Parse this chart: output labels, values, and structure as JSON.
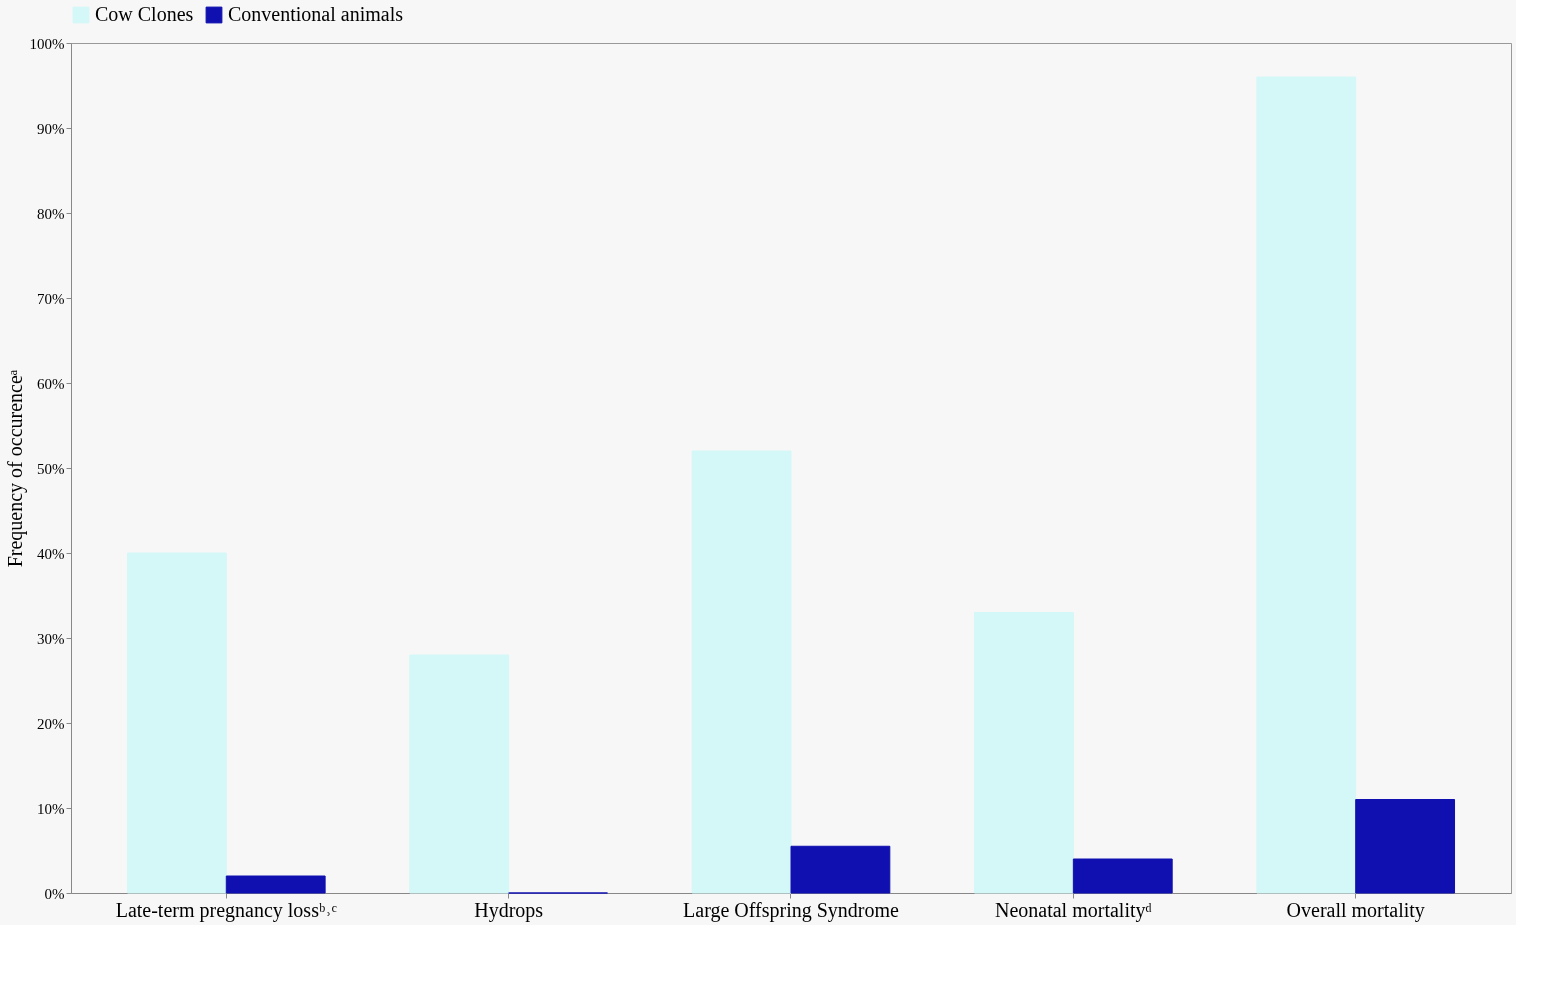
{
  "chart_data": {
    "type": "bar",
    "ylabel": "Frequency of occurenceᵃ",
    "categories": [
      "Late-term pregnancy lossᵇ˒ᶜ",
      "Hydrops",
      "Large Offspring Syndrome",
      "Neonatal mortalityᵈ",
      "Overall mortality"
    ],
    "series": [
      {
        "name": "Cow Clones",
        "color": "#d4f7f7",
        "values": [
          40,
          28,
          52,
          33,
          96
        ]
      },
      {
        "name": "Conventional animals",
        "color": "#1010b0",
        "values": [
          2,
          0,
          5.5,
          4,
          11
        ]
      }
    ],
    "ylim": [
      0,
      100
    ],
    "yticks": [
      {
        "value": 0,
        "label": "0%"
      },
      {
        "value": 10,
        "label": "10%"
      },
      {
        "value": 20,
        "label": "20%"
      },
      {
        "value": 30,
        "label": "30%"
      },
      {
        "value": 40,
        "label": "40%"
      },
      {
        "value": 50,
        "label": "50%"
      },
      {
        "value": 60,
        "label": "60%"
      },
      {
        "value": 70,
        "label": "70%"
      },
      {
        "value": 80,
        "label": "80%"
      },
      {
        "value": 90,
        "label": "90%"
      },
      {
        "value": 100,
        "label": "100%"
      }
    ],
    "grid": false,
    "legend": "top"
  }
}
